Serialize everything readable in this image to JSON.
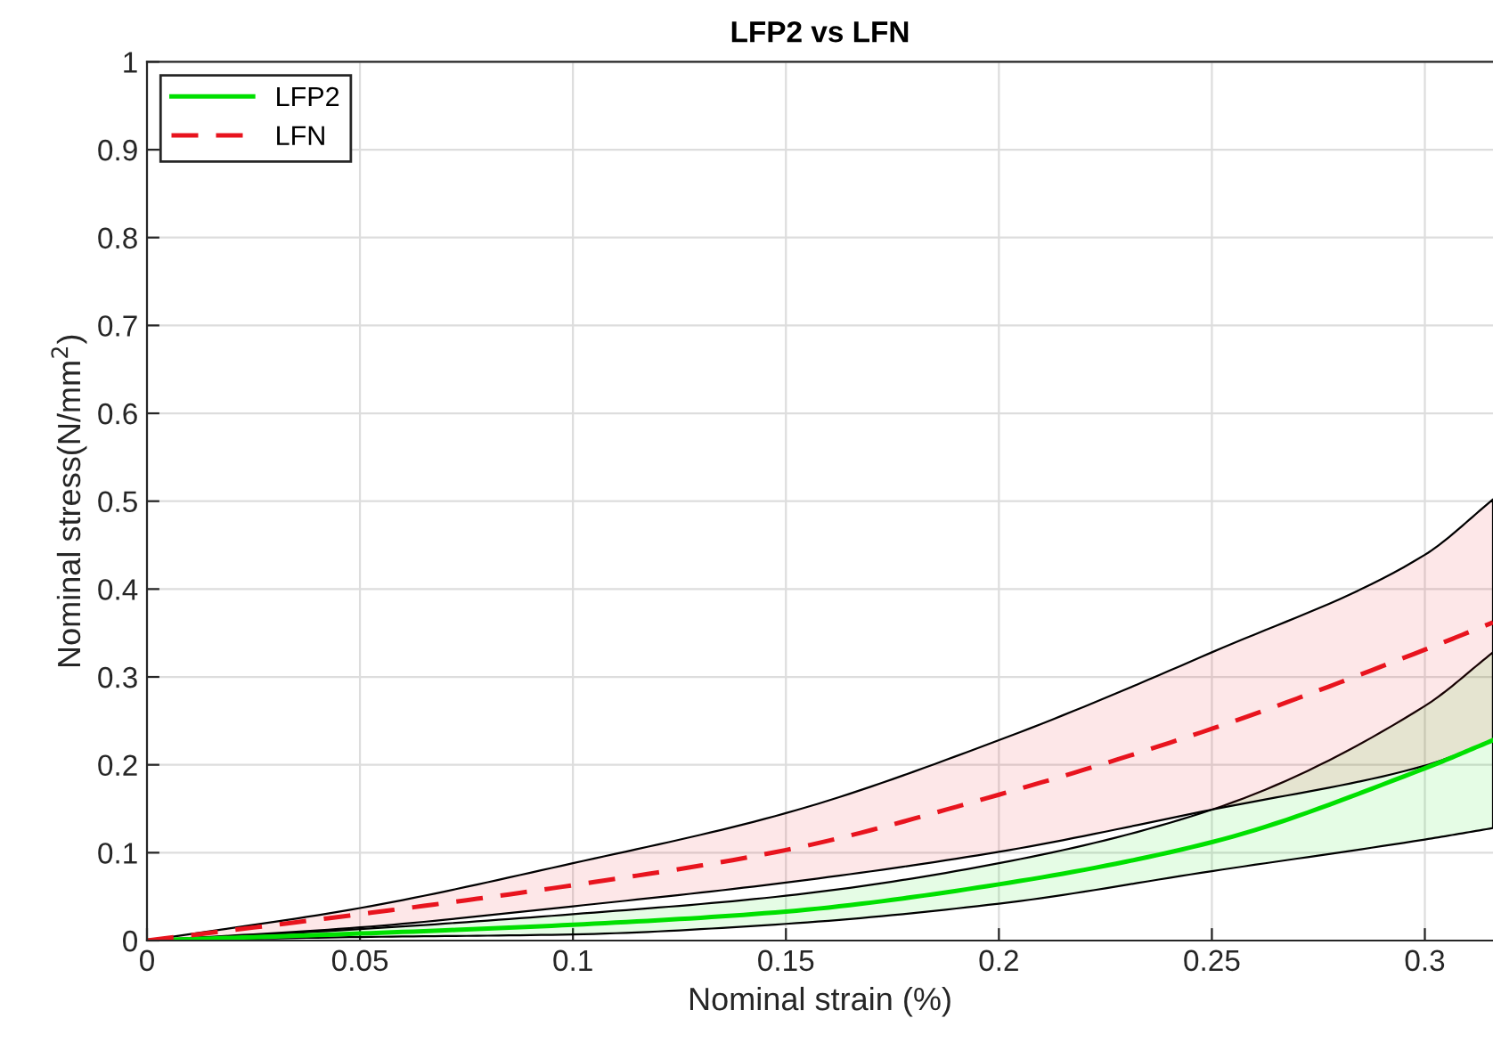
{
  "chart_data": {
    "type": "line",
    "title": "LFP2 vs LFN",
    "xlabel": "Nominal strain (%)",
    "ylabel": "Nominal stress(N/mm$^{2}$)",
    "x": [
      0,
      0.05,
      0.1,
      0.15,
      0.2,
      0.25,
      0.3,
      0.316
    ],
    "series": [
      {
        "name": "LFP2",
        "color": "#00e000",
        "line_style": "solid",
        "values": [
          0,
          0.008,
          0.018,
          0.033,
          0.064,
          0.112,
          0.196,
          0.228
        ],
        "lower": [
          0,
          0.004,
          0.007,
          0.019,
          0.042,
          0.079,
          0.115,
          0.128
        ],
        "upper": [
          0,
          0.013,
          0.03,
          0.051,
          0.088,
          0.149,
          0.267,
          0.328
        ]
      },
      {
        "name": "LFN",
        "color": "#e8141e",
        "line_style": "dashed",
        "values": [
          0,
          0.03,
          0.063,
          0.103,
          0.166,
          0.241,
          0.331,
          0.362
        ],
        "lower": [
          0,
          0.015,
          0.039,
          0.066,
          0.101,
          0.149,
          0.199,
          0.228
        ],
        "upper": [
          0,
          0.037,
          0.088,
          0.145,
          0.228,
          0.328,
          0.439,
          0.502
        ]
      }
    ],
    "xlim": [
      0,
      0.316
    ],
    "xticks": [
      0,
      0.05,
      0.1,
      0.15,
      0.2,
      0.25,
      0.3
    ],
    "ylim": [
      0,
      1
    ],
    "yticks": [
      0,
      0.1,
      0.2,
      0.3,
      0.4,
      0.5,
      0.6,
      0.7,
      0.8,
      0.9,
      1
    ],
    "grid": true,
    "legend": "top left"
  }
}
